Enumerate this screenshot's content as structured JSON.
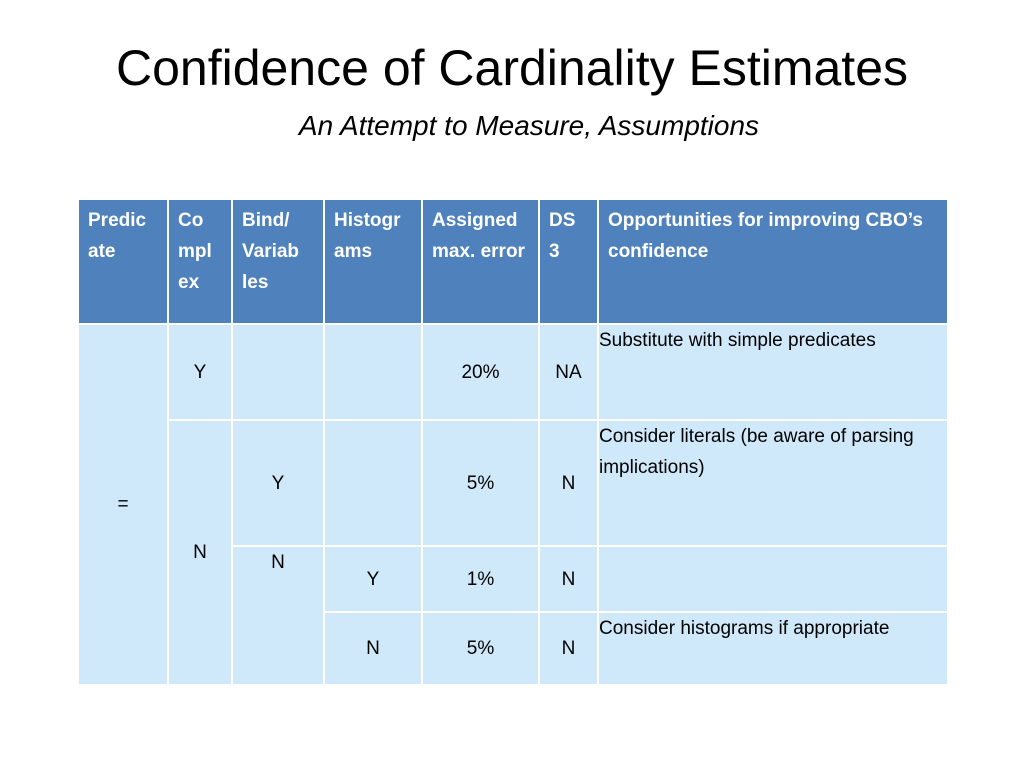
{
  "slide": {
    "title": "Confidence of Cardinality Estimates",
    "subtitle": "An Attempt to Measure, Assumptions"
  },
  "table": {
    "headers": {
      "predicate": "Predic ate",
      "complex": "Co mpl ex",
      "bind": "Bind/ Variab les",
      "histograms": "Histogr ams",
      "error": "Assigned max. error",
      "ds3": "DS 3",
      "opportunities": "Opportunities for improving CBO’s confidence"
    },
    "rows": [
      {
        "predicate": "=",
        "complex": "Y",
        "bind": "",
        "histograms": "",
        "error": "20%",
        "ds3": "NA",
        "opportunities": "Substitute with simple predicates"
      },
      {
        "complex": "N",
        "bind": "Y",
        "histograms": "",
        "error": "5%",
        "ds3": "N",
        "opportunities": "Consider literals (be aware of parsing implications)"
      },
      {
        "bind": "N",
        "histograms": "Y",
        "error": "1%",
        "ds3": "N",
        "opportunities": ""
      },
      {
        "histograms": "N",
        "error": "5%",
        "ds3": "N",
        "opportunities": "Consider histograms if appropriate"
      }
    ]
  },
  "colors": {
    "header_bg": "#4f81bd",
    "header_text": "#ffffff",
    "cell_bg": "#d0e9fa"
  }
}
